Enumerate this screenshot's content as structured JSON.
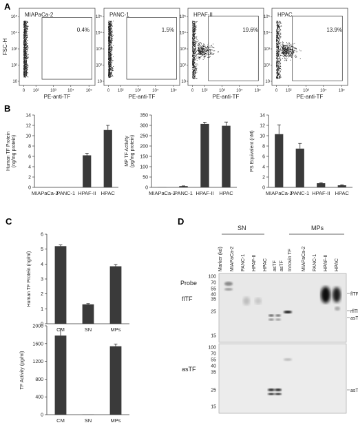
{
  "panel_letters": [
    "A",
    "B",
    "C",
    "D"
  ],
  "panel_A": {
    "y_label": "FSC-H",
    "x_label": "PE-anti-TF",
    "y_ticks": [
      "10⁵",
      "10⁴",
      "10³",
      "10²",
      "10"
    ],
    "x_ticks": [
      "0",
      "10²",
      "10³",
      "10⁴",
      "10⁵"
    ],
    "plots": [
      {
        "name": "MIAPaCa-2",
        "percent": "0.4%"
      },
      {
        "name": "PANC-1",
        "percent": "1.5%"
      },
      {
        "name": "HPAF-II",
        "percent": "19.6%"
      },
      {
        "name": "HPAC",
        "percent": "13.9%"
      }
    ]
  },
  "chart_data": [
    {
      "type": "bar",
      "panel": "B1",
      "categories": [
        "MIAPaCa-2",
        "PANC-1",
        "HPAF-II",
        "HPAC"
      ],
      "values": [
        0,
        0,
        6.2,
        11.1
      ],
      "errors": [
        0,
        0,
        0.4,
        0.9
      ],
      "ylabel": "Human TF Protein (ng/mg protein)",
      "ylim": [
        0,
        14
      ],
      "yticks": [
        0,
        2,
        4,
        6,
        8,
        10,
        12,
        14
      ]
    },
    {
      "type": "bar",
      "panel": "B2",
      "categories": [
        "MIAPaCa-2",
        "PANC-1",
        "HPAF-II",
        "HPAC"
      ],
      "values": [
        1,
        6,
        307,
        298
      ],
      "errors": [
        0,
        1,
        8,
        18
      ],
      "ylabel": "MP TF Activity (pg/mg protein)",
      "ylim": [
        0,
        350
      ],
      "yticks": [
        0,
        50,
        100,
        150,
        200,
        250,
        300,
        350
      ]
    },
    {
      "type": "bar",
      "panel": "B3",
      "categories": [
        "MIAPaCa-2",
        "PANC-1",
        "HPAF-II",
        "HPAC"
      ],
      "values": [
        10.3,
        7.5,
        0.8,
        0.4
      ],
      "errors": [
        1.8,
        1.0,
        0.1,
        0.1
      ],
      "ylabel": "PS Equivalent (nM)",
      "ylim": [
        0,
        14
      ],
      "yticks": [
        0,
        2,
        4,
        6,
        8,
        10,
        12,
        14
      ]
    },
    {
      "type": "bar",
      "panel": "C1",
      "categories": [
        "CM",
        "SN",
        "MPs"
      ],
      "values": [
        5.2,
        1.3,
        3.85
      ],
      "errors": [
        0.08,
        0.05,
        0.12
      ],
      "ylabel": "Human TF Protein (ng/ml)",
      "ylim": [
        0,
        6
      ],
      "yticks": [
        0,
        1,
        2,
        3,
        4,
        5,
        6
      ]
    },
    {
      "type": "bar",
      "panel": "C2",
      "categories": [
        "CM",
        "SN",
        "MPs"
      ],
      "values": [
        1780,
        5,
        1540
      ],
      "errors": [
        150,
        0,
        50
      ],
      "ylabel": "TF Activity (pg/ml)",
      "ylim": [
        0,
        2000
      ],
      "yticks": [
        0,
        400,
        800,
        1200,
        1600,
        2000
      ]
    }
  ],
  "panel_D": {
    "group_sn": "SN",
    "group_mps": "MPs",
    "lanes": [
      "Marker (kd)",
      "MIAPaCa-2",
      "PANC-1",
      "HPAF-II",
      "HPAC",
      "asTF",
      "asTF",
      "Innovin TF",
      "MIAPaCa-2",
      "PANC-1",
      "HPAF-II",
      "HPAC"
    ],
    "probe_label": "Probe",
    "blots": [
      {
        "probe": "flTF",
        "markers": [
          "100",
          "70",
          "55",
          "40",
          "35",
          "25",
          "15"
        ],
        "bands": [
          "flTF",
          "rflTF",
          "asTF"
        ]
      },
      {
        "probe": "asTF",
        "markers": [
          "100",
          "70",
          "55",
          "40",
          "35",
          "25",
          "15"
        ],
        "bands": [
          "asTF"
        ]
      }
    ]
  }
}
